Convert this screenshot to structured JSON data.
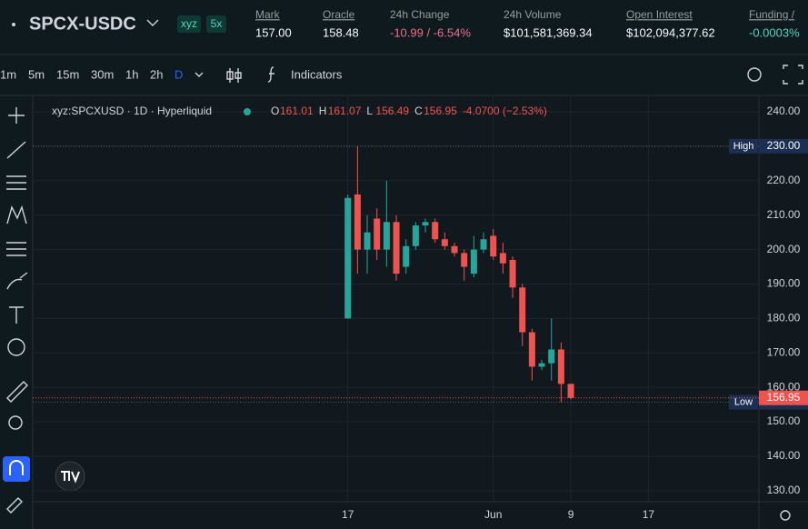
{
  "header": {
    "pair": "SPCX-USDC",
    "badges": [
      "xyz",
      "5x"
    ],
    "stats": [
      {
        "label": "Mark",
        "value": "157.00"
      },
      {
        "label": "Oracle",
        "value": "158.48"
      },
      {
        "label": "24h Change",
        "value": "-10.99 / -6.54%"
      },
      {
        "label": "24h Volume",
        "value": "$101,581,369.34"
      },
      {
        "label": "Open Interest",
        "value": "$102,094,377.62"
      },
      {
        "label": "Funding /",
        "value": "-0.0003%"
      }
    ]
  },
  "toolbar": {
    "intervals": [
      "1m",
      "5m",
      "15m",
      "30m",
      "1h",
      "2h",
      "D"
    ],
    "indicators": "Indicators"
  },
  "chart_data": {
    "type": "candlestick",
    "legend": {
      "symbol": "xyz:SPCXUSD · 1D · Hyperliquid",
      "fields": [
        "O",
        "H",
        "L",
        "C"
      ],
      "change": "-4.0700 (−2.53%)"
    },
    "x": [
      0,
      1,
      2,
      3,
      4,
      5,
      6,
      7,
      8,
      9,
      10,
      11,
      12,
      13,
      14,
      15,
      16,
      17,
      18,
      19,
      20,
      21,
      22,
      23
    ],
    "open": [
      180,
      216,
      200,
      209,
      200,
      208,
      195,
      201,
      207,
      208,
      203,
      201,
      199,
      193,
      200,
      204,
      199,
      197,
      189,
      176,
      166,
      167,
      171,
      161.01
    ],
    "high": [
      216,
      230,
      210,
      212,
      220,
      210,
      203,
      208,
      209,
      209,
      205,
      202,
      200,
      204,
      205,
      206,
      202,
      198,
      190,
      177,
      168,
      180,
      173,
      161.07
    ],
    "low": [
      180,
      193,
      193,
      197,
      195,
      191,
      193,
      200,
      205,
      202,
      200,
      198,
      191,
      192,
      199,
      197,
      193,
      186,
      172,
      162,
      165,
      162,
      155.68,
      156.49
    ],
    "close": [
      215,
      200,
      205,
      200,
      208,
      193,
      201,
      207,
      208,
      203,
      201,
      199,
      195,
      200,
      203,
      198,
      196,
      189,
      176,
      166,
      167,
      171,
      161,
      156.95
    ],
    "up_color": "#26a69a",
    "down_color": "#ef5350",
    "xlim": [
      -32.5,
      42.4
    ],
    "xticks": [
      {
        "value": 0,
        "label": "17"
      },
      {
        "value": 15,
        "label": "Jun"
      },
      {
        "value": 23,
        "label": "9"
      },
      {
        "value": 31,
        "label": "17"
      }
    ],
    "ylim": [
      126.8,
      244.75
    ],
    "yticks": [
      {
        "value": 130,
        "label": "130.00"
      },
      {
        "value": 140,
        "label": "140.00"
      },
      {
        "value": 150,
        "label": "150.00"
      },
      {
        "value": 160,
        "label": "160.00"
      },
      {
        "value": 170,
        "label": "170.00"
      },
      {
        "value": 180,
        "label": "180.00"
      },
      {
        "value": 190,
        "label": "190.00"
      },
      {
        "value": 200,
        "label": "200.00"
      },
      {
        "value": 210,
        "label": "210.00"
      },
      {
        "value": 220,
        "label": "220.00"
      },
      {
        "value": 230,
        "label": "230.00"
      },
      {
        "value": 240,
        "label": "240.00"
      }
    ],
    "grid": true,
    "price_lines": [
      {
        "name": "High",
        "value": 230,
        "label": "230.00"
      },
      {
        "name": "Low",
        "value": 155.68
      },
      {
        "value": 156.95
      }
    ]
  }
}
